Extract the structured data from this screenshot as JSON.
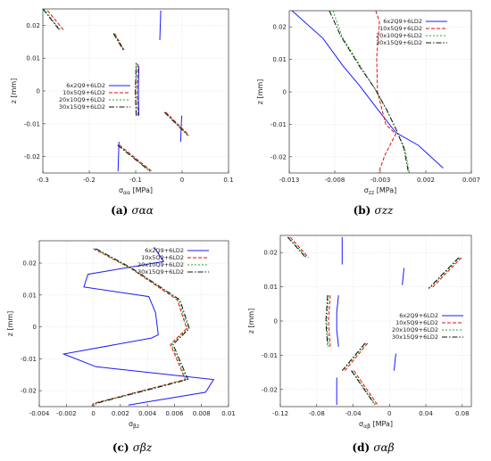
{
  "chart_data": [
    {
      "type": "line",
      "caption": "(a)",
      "caption_symbol": "σαα",
      "xlabel_sym": "σ",
      "xlabel_sub": "αα",
      "xlabel_unit": "[MPa]",
      "ylabel": "z [mm]",
      "xlim": [
        -0.3,
        0.1
      ],
      "ylim": [
        -0.025,
        0.025
      ],
      "xticks": [
        "-0.3",
        "-0.2",
        "-0.1",
        "0",
        "0.1"
      ],
      "xtick_values": [
        -0.3,
        -0.2,
        -0.1,
        0,
        0.1
      ],
      "yticks": [
        "0.02",
        "0.01",
        "0",
        "-0.01",
        "-0.02"
      ],
      "ytick_values": [
        0.02,
        0.01,
        0,
        -0.01,
        -0.02
      ],
      "legend_position": "center-left",
      "grid": true,
      "series": [
        {
          "name": "6x2Q9+6LD2",
          "color": "#1a1aff",
          "dash": "",
          "segments": [
            [
              [
                -0.138,
                -0.0245
              ],
              [
                -0.136,
                -0.0155
              ]
            ],
            [
              [
                -0.093,
                -0.0075
              ],
              [
                -0.094,
                -0.0025
              ],
              [
                -0.094,
                0.0025
              ],
              [
                -0.093,
                0.0075
              ]
            ],
            [
              [
                -0.048,
                0.0155
              ],
              [
                -0.046,
                0.0245
              ]
            ],
            [
              [
                -0.003,
                -0.0155
              ],
              [
                -0.001,
                -0.0075
              ]
            ]
          ]
        },
        {
          "name": "10x5Q9+6LD2",
          "color": "#dd1111",
          "dash": "4,2",
          "segments": [
            [
              [
                -0.29,
                0.0245
              ],
              [
                -0.255,
                0.0185
              ]
            ],
            [
              [
                -0.145,
                0.0175
              ],
              [
                -0.125,
                0.0125
              ]
            ],
            [
              [
                -0.095,
                -0.0075
              ],
              [
                -0.097,
                0.0
              ],
              [
                -0.095,
                0.0085
              ]
            ],
            [
              [
                -0.035,
                -0.0065
              ],
              [
                0.015,
                -0.0135
              ]
            ],
            [
              [
                -0.135,
                -0.0165
              ],
              [
                -0.065,
                -0.0245
              ]
            ]
          ]
        },
        {
          "name": "20x10Q9+6LD2",
          "color": "#22aa22",
          "dash": "2,2",
          "segments": [
            [
              [
                -0.298,
                0.025
              ],
              [
                -0.262,
                0.0185
              ]
            ],
            [
              [
                -0.147,
                0.0175
              ],
              [
                -0.126,
                0.0125
              ]
            ],
            [
              [
                -0.098,
                -0.0075
              ],
              [
                -0.1,
                0.0
              ],
              [
                -0.098,
                0.0085
              ]
            ],
            [
              [
                -0.037,
                -0.0065
              ],
              [
                0.013,
                -0.0135
              ]
            ],
            [
              [
                -0.138,
                -0.0165
              ],
              [
                -0.068,
                -0.0245
              ]
            ]
          ]
        },
        {
          "name": "30x15Q9+6LD2",
          "color": "#111111",
          "dash": "6,2,1.5,2",
          "segments": [
            [
              [
                -0.3,
                0.025
              ],
              [
                -0.264,
                0.0185
              ]
            ],
            [
              [
                -0.148,
                0.0175
              ],
              [
                -0.127,
                0.0125
              ]
            ],
            [
              [
                -0.099,
                -0.0075
              ],
              [
                -0.101,
                0.0
              ],
              [
                -0.099,
                0.0085
              ]
            ],
            [
              [
                -0.038,
                -0.0065
              ],
              [
                0.012,
                -0.0135
              ]
            ],
            [
              [
                -0.139,
                -0.0165
              ],
              [
                -0.069,
                -0.0245
              ]
            ]
          ]
        }
      ]
    },
    {
      "type": "line",
      "caption": "(b)",
      "caption_symbol": "σzz",
      "xlabel_sym": "σ",
      "xlabel_sub": "zz",
      "xlabel_unit": "[MPa]",
      "ylabel": "z [mm]",
      "xlim": [
        -0.013,
        0.007
      ],
      "ylim": [
        -0.025,
        0.025
      ],
      "xticks": [
        "-0.013",
        "-0.008",
        "-0.003",
        "0.002",
        "0.007"
      ],
      "xtick_values": [
        -0.013,
        -0.008,
        -0.003,
        0.002,
        0.007
      ],
      "yticks": [
        "0.02",
        "0.01",
        "0",
        "-0.01",
        "-0.02"
      ],
      "ytick_values": [
        0.02,
        0.01,
        0,
        -0.01,
        -0.02
      ],
      "legend_position": "top-right",
      "grid": true,
      "series": [
        {
          "name": "6x2Q9+6LD2",
          "color": "#1a1aff",
          "dash": "",
          "segments": [
            [
              [
                -0.0127,
                0.025
              ],
              [
                -0.0093,
                0.0165
              ],
              [
                -0.0071,
                0.008
              ],
              [
                -0.0053,
                0.002
              ],
              [
                -0.0034,
                -0.005
              ],
              [
                -0.0013,
                -0.0125
              ],
              [
                0.0012,
                -0.0165
              ],
              [
                0.0039,
                -0.0235
              ]
            ]
          ]
        },
        {
          "name": "10x5Q9+6LD2",
          "color": "#dd1111",
          "dash": "4,2",
          "segments": [
            [
              [
                -0.0035,
                0.025
              ],
              [
                -0.0031,
                0.0215
              ],
              [
                -0.0034,
                0.0105
              ],
              [
                -0.0033,
                0.0
              ],
              [
                -0.0024,
                -0.01
              ],
              [
                -0.0013,
                -0.013
              ],
              [
                -0.0025,
                -0.0195
              ],
              [
                -0.0032,
                -0.025
              ]
            ]
          ]
        },
        {
          "name": "20x10Q9+6LD2",
          "color": "#22aa22",
          "dash": "2,2",
          "segments": [
            [
              [
                -0.0082,
                0.025
              ],
              [
                -0.0072,
                0.017
              ],
              [
                -0.0051,
                0.0075
              ],
              [
                -0.0036,
                0.001
              ],
              [
                -0.0023,
                -0.0055
              ],
              [
                -0.0012,
                -0.012
              ],
              [
                -0.0003,
                -0.0175
              ],
              [
                0.0002,
                -0.025
              ]
            ]
          ]
        },
        {
          "name": "30x15Q9+6LD2",
          "color": "#111111",
          "dash": "6,2,1.5,2",
          "segments": [
            [
              [
                -0.0086,
                0.025
              ],
              [
                -0.0073,
                0.017
              ],
              [
                -0.0052,
                0.0075
              ],
              [
                -0.0036,
                0.001
              ],
              [
                -0.0023,
                -0.0055
              ],
              [
                -0.0012,
                -0.012
              ],
              [
                -0.0004,
                -0.0175
              ],
              [
                0.0001,
                -0.025
              ]
            ]
          ]
        }
      ]
    },
    {
      "type": "line",
      "caption": "(c)",
      "caption_symbol": "σβz",
      "xlabel_sym": "σ",
      "xlabel_sub": "βz",
      "xlabel_unit": "",
      "ylabel": "z [mm]",
      "xlim": [
        -0.004,
        0.01
      ],
      "ylim": [
        -0.025,
        0.027
      ],
      "xticks": [
        "-0.004",
        "-0.002",
        "0",
        "0.002",
        "0.004",
        "0.006",
        "0.008",
        "0.01"
      ],
      "xtick_values": [
        -0.004,
        -0.002,
        0,
        0.002,
        0.004,
        0.006,
        0.008,
        0.01
      ],
      "yticks": [
        "0.02",
        "0.01",
        "0",
        "-0.01",
        "-0.02"
      ],
      "ytick_values": [
        0.02,
        0.01,
        0,
        -0.01,
        -0.02
      ],
      "legend_position": "top-right",
      "grid": true,
      "series": [
        {
          "name": "6x2Q9+6LD2",
          "color": "#1a1aff",
          "dash": "",
          "segments": [
            [
              [
                0.0045,
                0.025
              ],
              [
                0.0052,
                0.0205
              ],
              [
                -0.0004,
                0.0165
              ],
              [
                -0.0007,
                0.0125
              ],
              [
                0.0041,
                0.0095
              ],
              [
                0.0046,
                0.0045
              ],
              [
                0.0048,
                -0.0025
              ],
              [
                0.0043,
                -0.0035
              ],
              [
                -0.0022,
                -0.0085
              ],
              [
                0.0002,
                -0.0125
              ],
              [
                0.0067,
                -0.0155
              ],
              [
                0.0089,
                -0.0165
              ],
              [
                0.0083,
                -0.0205
              ],
              [
                0.0026,
                -0.0245
              ]
            ]
          ]
        },
        {
          "name": "10x5Q9+6LD2",
          "color": "#dd1111",
          "dash": "4,2",
          "segments": [
            [
              [
                0.0,
                0.0245
              ],
              [
                0.0027,
                0.0185
              ],
              [
                0.0062,
                0.0085
              ],
              [
                0.0069,
                -0.0005
              ],
              [
                0.0057,
                -0.0055
              ],
              [
                0.0064,
                -0.0125
              ],
              [
                0.0068,
                -0.0165
              ],
              [
                0.0,
                -0.024
              ],
              [
                -0.0002,
                -0.0255
              ]
            ]
          ]
        },
        {
          "name": "20x10Q9+6LD2",
          "color": "#22aa22",
          "dash": "2,2",
          "segments": [
            [
              [
                0.0001,
                0.0245
              ],
              [
                0.0027,
                0.0185
              ],
              [
                0.0063,
                0.0085
              ],
              [
                0.007,
                -0.0005
              ],
              [
                0.0058,
                -0.0055
              ],
              [
                0.0065,
                -0.0125
              ],
              [
                0.0069,
                -0.0165
              ],
              [
                0.0001,
                -0.024
              ],
              [
                -0.0001,
                -0.0255
              ]
            ]
          ]
        },
        {
          "name": "30x15Q9+6LD2",
          "color": "#111111",
          "dash": "6,2,1.5,2",
          "segments": [
            [
              [
                0.0002,
                0.0245
              ],
              [
                0.0028,
                0.0185
              ],
              [
                0.0064,
                0.0085
              ],
              [
                0.0071,
                -0.0005
              ],
              [
                0.0059,
                -0.0055
              ],
              [
                0.0066,
                -0.0125
              ],
              [
                0.007,
                -0.0165
              ],
              [
                0.0002,
                -0.024
              ],
              [
                0.0,
                -0.0255
              ]
            ]
          ]
        }
      ]
    },
    {
      "type": "line",
      "caption": "(d)",
      "caption_symbol": "σαβ",
      "xlabel_sym": "σ",
      "xlabel_sub": "αβ",
      "xlabel_unit": "[MPa]",
      "ylabel": "z [mm]",
      "xlim": [
        -0.12,
        0.09
      ],
      "ylim": [
        -0.025,
        0.025
      ],
      "xticks": [
        "-0.12",
        "-0.08",
        "-0.04",
        "0",
        "0.04",
        "0.08"
      ],
      "xtick_values": [
        -0.12,
        -0.08,
        -0.04,
        0,
        0.04,
        0.08
      ],
      "yticks": [
        "0.02",
        "0.01",
        "0",
        "-0.01",
        "-0.02"
      ],
      "ytick_values": [
        0.02,
        0.01,
        0,
        -0.01,
        -0.02
      ],
      "legend_position": "center-right",
      "grid": true,
      "series": [
        {
          "name": "6x2Q9+6LD2",
          "color": "#1a1aff",
          "dash": "",
          "segments": [
            [
              [
                -0.058,
                -0.0165
              ],
              [
                -0.058,
                -0.0245
              ]
            ],
            [
              [
                -0.052,
                0.0245
              ],
              [
                -0.052,
                0.0165
              ]
            ],
            [
              [
                -0.056,
                0.0075
              ],
              [
                -0.058,
                0.0025
              ],
              [
                -0.058,
                -0.0025
              ],
              [
                -0.056,
                -0.0075
              ]
            ],
            [
              [
                0.016,
                0.0155
              ],
              [
                0.014,
                0.0105
              ]
            ],
            [
              [
                0.007,
                -0.0095
              ],
              [
                0.005,
                -0.0145
              ]
            ]
          ]
        },
        {
          "name": "10x5Q9+6LD2",
          "color": "#dd1111",
          "dash": "4,2",
          "segments": [
            [
              [
                -0.109,
                0.0245
              ],
              [
                -0.089,
                0.0185
              ]
            ],
            [
              [
                -0.065,
                0.0075
              ],
              [
                -0.067,
                0.0
              ],
              [
                -0.065,
                -0.0075
              ]
            ],
            [
              [
                -0.024,
                -0.0065
              ],
              [
                -0.049,
                -0.0145
              ]
            ],
            [
              [
                0.079,
                0.0185
              ],
              [
                0.046,
                0.0095
              ]
            ],
            [
              [
                -0.039,
                -0.0145
              ],
              [
                -0.013,
                -0.0245
              ]
            ]
          ]
        },
        {
          "name": "20x10Q9+6LD2",
          "color": "#22aa22",
          "dash": "2,2",
          "segments": [
            [
              [
                -0.111,
                0.0245
              ],
              [
                -0.091,
                0.0185
              ]
            ],
            [
              [
                -0.067,
                0.0075
              ],
              [
                -0.069,
                0.0
              ],
              [
                -0.067,
                -0.0075
              ]
            ],
            [
              [
                -0.026,
                -0.0065
              ],
              [
                -0.051,
                -0.0145
              ]
            ],
            [
              [
                0.077,
                0.0185
              ],
              [
                0.044,
                0.0095
              ]
            ],
            [
              [
                -0.041,
                -0.0145
              ],
              [
                -0.015,
                -0.0245
              ]
            ]
          ]
        },
        {
          "name": "30x15Q9+6LD2",
          "color": "#111111",
          "dash": "6,2,1.5,2",
          "segments": [
            [
              [
                -0.112,
                0.0245
              ],
              [
                -0.092,
                0.0185
              ]
            ],
            [
              [
                -0.068,
                0.0075
              ],
              [
                -0.07,
                0.0
              ],
              [
                -0.068,
                -0.0075
              ]
            ],
            [
              [
                -0.027,
                -0.0065
              ],
              [
                -0.052,
                -0.0145
              ]
            ],
            [
              [
                0.076,
                0.0185
              ],
              [
                0.043,
                0.0095
              ]
            ],
            [
              [
                -0.042,
                -0.0145
              ],
              [
                -0.016,
                -0.0245
              ]
            ]
          ]
        }
      ]
    }
  ]
}
